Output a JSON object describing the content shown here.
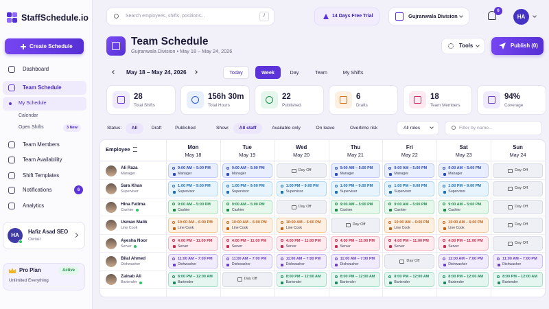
{
  "brand": "StaffSchedule.io",
  "search": {
    "placeholder": "Search employees, shifts, positions...",
    "shortcut": "/"
  },
  "trial": "14 Days Free Trial",
  "division": "Gujranwala Division",
  "notification_count": "6",
  "avatar": "HA",
  "sidebar": {
    "create": "Create Schedule",
    "nav": [
      {
        "label": "Dashboard"
      },
      {
        "label": "Team Schedule",
        "active": true
      },
      {
        "label": "My Schedule",
        "sub": true,
        "active": true
      },
      {
        "label": "Calendar",
        "sub": true
      },
      {
        "label": "Open Shifts",
        "sub": true,
        "badge": "3 New"
      },
      {
        "label": "Team Members"
      },
      {
        "label": "Team Availability"
      },
      {
        "label": "Shift Templates"
      },
      {
        "label": "Notifications",
        "badge": "6"
      },
      {
        "label": "Analytics"
      }
    ],
    "user": {
      "initials": "HA",
      "name": "Hafiz Asad SEO",
      "role": "Owner"
    },
    "plan": {
      "name": "Pro Plan",
      "status": "Active",
      "detail": "Unlimited Everything"
    }
  },
  "header": {
    "title": "Team Schedule",
    "subtitle": "Gujranwala Division • May 18 – May 24, 2026",
    "tools": "Tools",
    "publish": "Publish (0)"
  },
  "range": "May 18 – May 24, 2026",
  "views": [
    {
      "label": "Today"
    },
    {
      "label": "Week",
      "active": true
    },
    {
      "label": "Day"
    },
    {
      "label": "Team"
    },
    {
      "label": "My Shifts"
    }
  ],
  "stats": [
    {
      "value": "28",
      "label": "Total Shifts"
    },
    {
      "value": "156h 30m",
      "label": "Total Hours"
    },
    {
      "value": "22",
      "label": "Published"
    },
    {
      "value": "6",
      "label": "Drafts"
    },
    {
      "value": "18",
      "label": "Team Members"
    },
    {
      "value": "94%",
      "label": "Coverage"
    }
  ],
  "filters": {
    "status_label": "Status:",
    "status": [
      "All",
      "Draft",
      "Published"
    ],
    "show_label": "Show:",
    "show": [
      "All staff",
      "Available only",
      "On leave",
      "Overtime risk"
    ],
    "roles": "All roles",
    "name_placeholder": "Filter by name..."
  },
  "grid": {
    "employee_header": "Employee",
    "days": [
      {
        "day": "Mon",
        "date": "May 18"
      },
      {
        "day": "Tue",
        "date": "May 19"
      },
      {
        "day": "Wed",
        "date": "May 20"
      },
      {
        "day": "Thu",
        "date": "May 21"
      },
      {
        "day": "Fri",
        "date": "May 22"
      },
      {
        "day": "Sat",
        "date": "May 23"
      },
      {
        "day": "Sun",
        "date": "May 24"
      }
    ],
    "employees": [
      {
        "name": "Ali Raza",
        "role": "Manager",
        "online": false,
        "shifts": [
          {
            "time": "9:00 AM – 5:00 PM",
            "role": "Manager"
          },
          {
            "time": "9:00 AM – 5:00 PM",
            "role": "Manager"
          },
          {
            "label": "Day Off"
          },
          {
            "time": "9:00 AM – 5:00 PM",
            "role": "Manager"
          },
          {
            "time": "9:00 AM – 5:00 PM",
            "role": "Manager"
          },
          {
            "time": "9:00 AM – 5:00 PM",
            "role": "Manager"
          },
          {
            "label": "Day Off"
          }
        ]
      },
      {
        "name": "Sara Khan",
        "role": "Supervisor",
        "online": false,
        "shifts": [
          {
            "time": "1:00 PM – 9:00 PM",
            "role": "Supervisor"
          },
          {
            "time": "1:00 PM – 9:00 PM",
            "role": "Supervisor"
          },
          {
            "time": "1:00 PM – 9:00 PM",
            "role": "Supervisor"
          },
          {
            "time": "1:00 PM – 9:00 PM",
            "role": "Supervisor"
          },
          {
            "time": "1:00 PM – 9:00 PM",
            "role": "Supervisor"
          },
          {
            "time": "1:00 PM – 9:00 PM",
            "role": "Supervisor"
          },
          {
            "label": "Day Off"
          }
        ]
      },
      {
        "name": "Hina Fatima",
        "role": "Cashier",
        "online": true,
        "shifts": [
          {
            "time": "9:00 AM – 5:00 PM",
            "role": "Cashier"
          },
          {
            "time": "9:00 AM – 5:00 PM",
            "role": "Cashier"
          },
          {
            "label": "Day Off"
          },
          {
            "time": "9:00 AM – 5:00 PM",
            "role": "Cashier"
          },
          {
            "time": "9:00 AM – 5:00 PM",
            "role": "Cashier"
          },
          {
            "time": "9:00 AM – 5:00 PM",
            "role": "Cashier"
          },
          {
            "label": "Day Off"
          }
        ]
      },
      {
        "name": "Usman Malik",
        "role": "Line Cook",
        "online": false,
        "shifts": [
          {
            "time": "10:00 AM – 6:00 PM",
            "role": "Line Cook"
          },
          {
            "time": "10:00 AM – 6:00 PM",
            "role": "Line Cook"
          },
          {
            "time": "10:00 AM – 6:00 PM",
            "role": "Line Cook"
          },
          {
            "label": "Day Off"
          },
          {
            "time": "10:00 AM – 6:00 PM",
            "role": "Line Cook"
          },
          {
            "time": "10:00 AM – 6:00 PM",
            "role": "Line Cook"
          },
          {
            "label": "Day Off"
          }
        ]
      },
      {
        "name": "Ayesha Noor",
        "role": "Server",
        "online": true,
        "shifts": [
          {
            "time": "4:00 PM – 11:00 PM",
            "role": "Server"
          },
          {
            "time": "4:00 PM – 11:00 PM",
            "role": "Server"
          },
          {
            "time": "4:00 PM – 11:00 PM",
            "role": "Server"
          },
          {
            "time": "4:00 PM – 11:00 PM",
            "role": "Server"
          },
          {
            "time": "4:00 PM – 11:00 PM",
            "role": "Server"
          },
          {
            "time": "4:00 PM – 11:00 PM",
            "role": "Server"
          },
          {
            "label": "Day Off"
          }
        ]
      },
      {
        "name": "Bilal Ahmed",
        "role": "Dishwasher",
        "online": false,
        "shifts": [
          {
            "time": "11:00 AM – 7:00 PM",
            "role": "Dishwasher"
          },
          {
            "time": "11:00 AM – 7:00 PM",
            "role": "Dishwasher"
          },
          {
            "time": "11:00 AM – 7:00 PM",
            "role": "Dishwasher"
          },
          {
            "time": "11:00 AM – 7:00 PM",
            "role": "Dishwasher"
          },
          {
            "label": "Day Off"
          },
          {
            "time": "11:00 AM – 7:00 PM",
            "role": "Dishwasher"
          },
          {
            "time": "11:00 AM – 7:00 PM",
            "role": "Dishwasher"
          }
        ]
      },
      {
        "name": "Zainab Ali",
        "role": "Bartender",
        "online": true,
        "shifts": [
          {
            "time": "8:00 PM – 12:00 AM",
            "role": "Bartender"
          },
          {
            "label": "Day Off"
          },
          {
            "time": "8:00 PM – 12:00 AM",
            "role": "Bartender"
          },
          {
            "time": "8:00 PM – 12:00 AM",
            "role": "Bartender"
          },
          {
            "time": "8:00 PM – 12:00 AM",
            "role": "Bartender"
          },
          {
            "time": "8:00 PM – 12:00 AM",
            "role": "Bartender"
          },
          {
            "time": "8:00 PM – 12:00 AM",
            "role": "Bartender"
          }
        ]
      }
    ]
  }
}
